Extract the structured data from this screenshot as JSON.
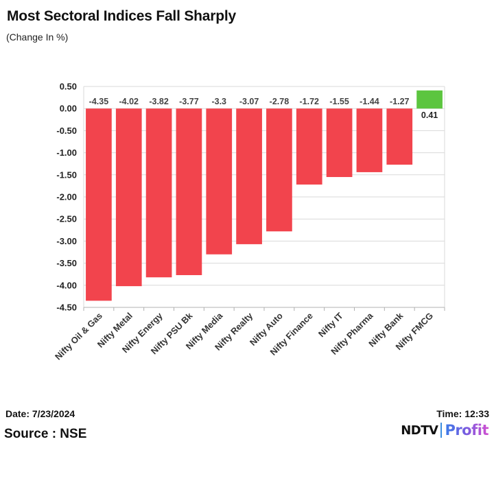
{
  "chart_data": {
    "type": "bar",
    "title": "Most Sectoral Indices Fall Sharply",
    "subtitle": "(Change In %)",
    "categories": [
      "Nifty Oil & Gas",
      "Nifty Metal",
      "Nifty Energy",
      "Nifty PSU Bk",
      "Nifty Media",
      "Nifty Realty",
      "Nifty Auto",
      "Nifty Finance",
      "Nifty IT",
      "Nifty Pharma",
      "Nifty Bank",
      "Nifty FMCG"
    ],
    "values": [
      -4.35,
      -4.02,
      -3.82,
      -3.77,
      -3.3,
      -3.07,
      -2.78,
      -1.72,
      -1.55,
      -1.44,
      -1.27,
      0.41
    ],
    "value_labels": [
      "-4.35",
      "-4.02",
      "-3.82",
      "-3.77",
      "-3.3",
      "-3.07",
      "-2.78",
      "-1.72",
      "-1.55",
      "-1.44",
      "-1.27",
      "0.41"
    ],
    "ylim": [
      -4.5,
      0.5
    ],
    "yticks": [
      "0.50",
      "0.00",
      "-0.50",
      "-1.00",
      "-1.50",
      "-2.00",
      "-2.50",
      "-3.00",
      "-3.50",
      "-4.00",
      "-4.50"
    ],
    "ytick_values": [
      0.5,
      0.0,
      -0.5,
      -1.0,
      -1.5,
      -2.0,
      -2.5,
      -3.0,
      -3.5,
      -4.0,
      -4.5
    ],
    "xlabel": "",
    "ylabel": "",
    "grid": true,
    "colors": {
      "negative": "#f2444d",
      "positive": "#5cc53f",
      "grid": "#d9d9d9",
      "axis": "#b0b0b0",
      "label": "#444444"
    }
  },
  "footer": {
    "date": "Date: 7/23/2024",
    "time": "Time: 12:33",
    "source": "Source : NSE"
  },
  "logo": {
    "brand": "NDTV",
    "product": "Profit"
  }
}
